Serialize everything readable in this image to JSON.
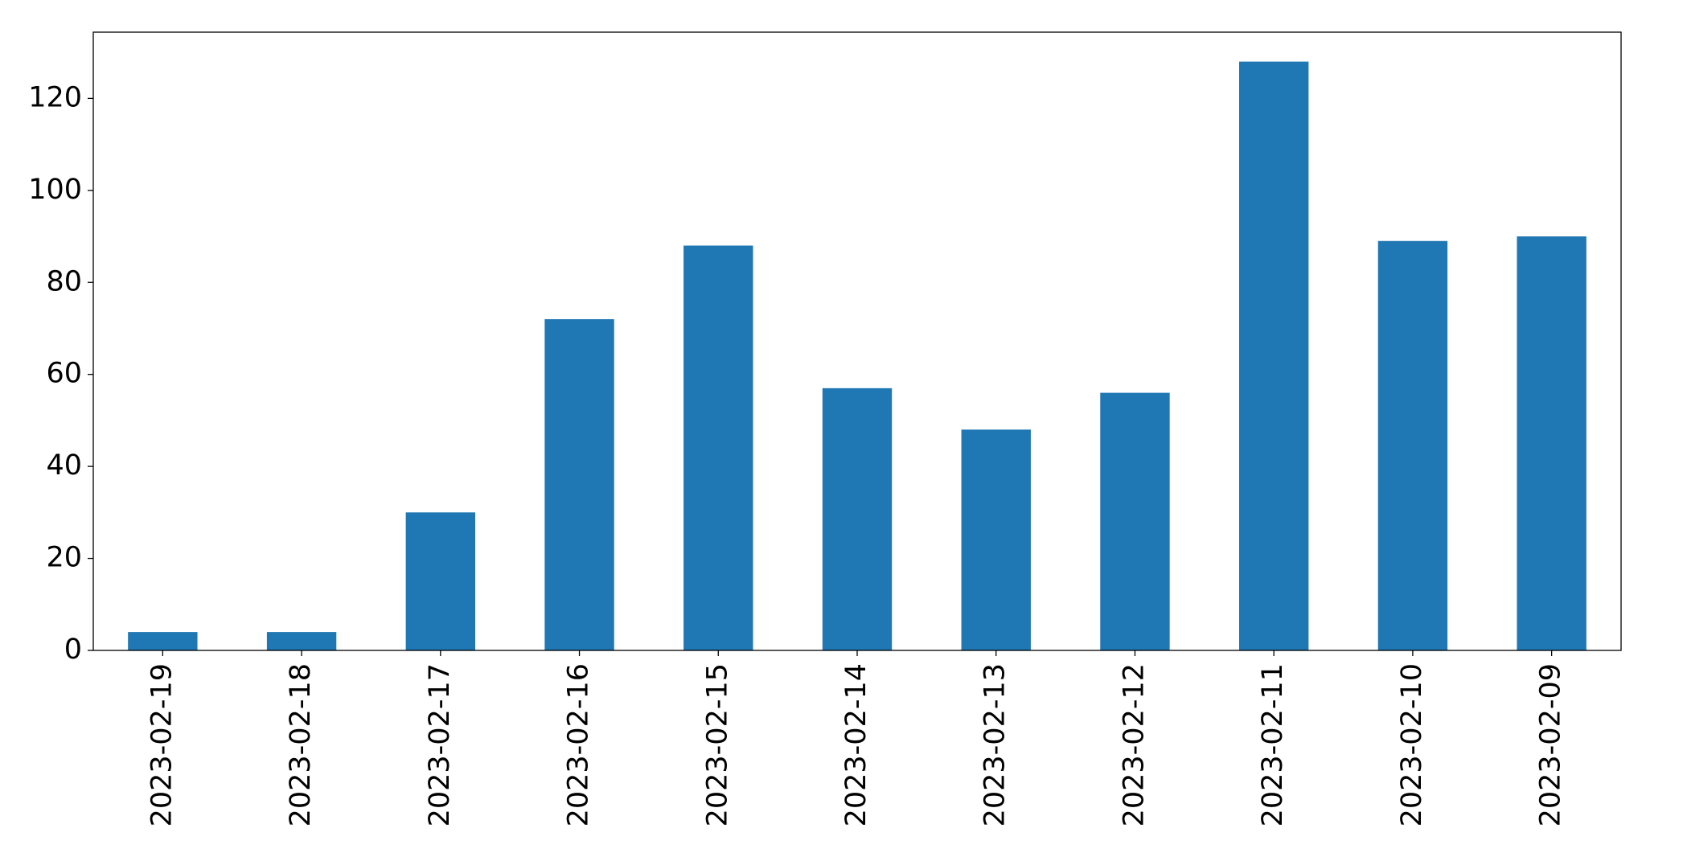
{
  "chart_data": {
    "type": "bar",
    "categories": [
      "2023-02-19",
      "2023-02-18",
      "2023-02-17",
      "2023-02-16",
      "2023-02-15",
      "2023-02-14",
      "2023-02-13",
      "2023-02-12",
      "2023-02-11",
      "2023-02-10",
      "2023-02-09"
    ],
    "values": [
      4,
      4,
      30,
      72,
      88,
      57,
      48,
      56,
      128,
      89,
      90
    ],
    "color": "#1f77b4",
    "ylim": [
      0,
      134.4
    ],
    "yticks": [
      0,
      20,
      40,
      60,
      80,
      100,
      120
    ],
    "grid": false
  }
}
